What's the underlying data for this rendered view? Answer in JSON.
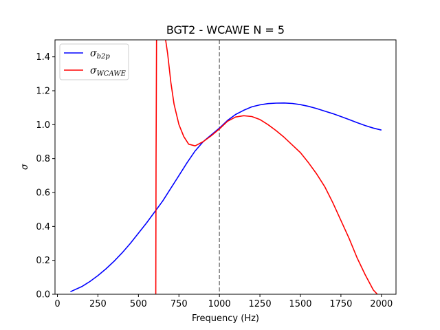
{
  "chart_data": {
    "type": "line",
    "title": "BGT2 - WCAWE N = 5",
    "xlabel": "Frequency (Hz)",
    "ylabel": "σ",
    "xlim": [
      -15,
      2090
    ],
    "ylim": [
      0,
      1.5
    ],
    "xticks": [
      0,
      250,
      500,
      750,
      1000,
      1250,
      1500,
      1750,
      2000
    ],
    "yticks": [
      0.0,
      0.2,
      0.4,
      0.6,
      0.8,
      1.0,
      1.2,
      1.4
    ],
    "grid": false,
    "legend_position": "top-left",
    "vline": {
      "x": 1000,
      "color": "#808080",
      "style": "dashed"
    },
    "series": [
      {
        "name": "σ_b2p",
        "label_main": "σ",
        "label_sub": "b2p",
        "color": "#0000ff",
        "x": [
          80,
          150,
          200,
          250,
          300,
          350,
          400,
          450,
          500,
          550,
          600,
          650,
          700,
          750,
          800,
          850,
          900,
          950,
          1000,
          1050,
          1100,
          1150,
          1200,
          1250,
          1300,
          1350,
          1400,
          1450,
          1500,
          1550,
          1600,
          1650,
          1700,
          1750,
          1800,
          1850,
          1900,
          1950,
          2000
        ],
        "y": [
          0.015,
          0.045,
          0.075,
          0.11,
          0.15,
          0.195,
          0.245,
          0.3,
          0.36,
          0.42,
          0.485,
          0.55,
          0.625,
          0.7,
          0.775,
          0.845,
          0.9,
          0.94,
          0.98,
          1.025,
          1.06,
          1.085,
          1.105,
          1.117,
          1.124,
          1.127,
          1.128,
          1.125,
          1.118,
          1.108,
          1.095,
          1.08,
          1.065,
          1.048,
          1.03,
          1.012,
          0.995,
          0.98,
          0.968
        ]
      },
      {
        "name": "σ_WCAWE",
        "label_main": "σ",
        "label_sub": "WCAWE",
        "color": "#ff0000",
        "segments": [
          {
            "x": [
              607,
              609,
              611,
              612
            ],
            "y": [
              0.0,
              0.8,
              1.3,
              1.5
            ]
          },
          {
            "x": [
              668,
              680,
              700,
              720,
              750,
              780,
              810,
              850,
              900,
              950,
              1000,
              1050,
              1100,
              1150,
              1200,
              1250,
              1300,
              1350,
              1400,
              1450,
              1500,
              1550,
              1600,
              1650,
              1700,
              1750,
              1800,
              1850,
              1900,
              1950,
              1975
            ],
            "y": [
              1.5,
              1.42,
              1.25,
              1.12,
              1.0,
              0.93,
              0.885,
              0.875,
              0.9,
              0.935,
              0.975,
              1.02,
              1.045,
              1.053,
              1.048,
              1.03,
              1.0,
              0.965,
              0.925,
              0.88,
              0.835,
              0.775,
              0.71,
              0.635,
              0.54,
              0.435,
              0.33,
              0.215,
              0.115,
              0.025,
              0.0
            ]
          }
        ]
      }
    ]
  }
}
